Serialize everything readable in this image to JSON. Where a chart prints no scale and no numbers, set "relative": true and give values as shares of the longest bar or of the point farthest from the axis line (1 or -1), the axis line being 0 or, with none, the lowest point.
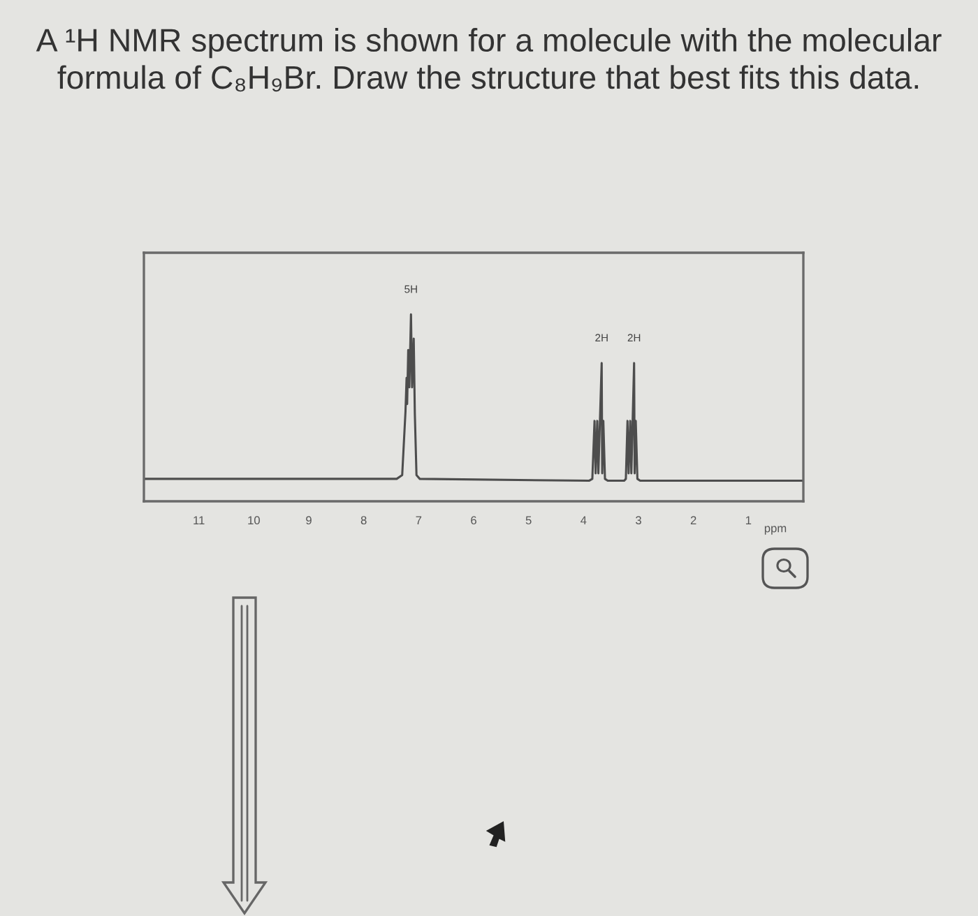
{
  "chart_data": {
    "type": "line",
    "title": "A ¹H NMR spectrum is shown for a molecule with the molecular formula of C₈H₉Br. Draw the structure that best fits this data.",
    "xlabel": "ppm",
    "relative": true,
    "xlim": [
      12,
      0
    ],
    "xticks": [
      11,
      10,
      9,
      8,
      7,
      6,
      5,
      4,
      3,
      2,
      1
    ],
    "line_style": "solid",
    "series": [
      {
        "color": "#4d4d4d",
        "x": [
          12,
          7.4,
          7.3,
          7.24,
          7.22,
          7.21,
          7.19,
          7.17,
          7.14,
          7.12,
          7.09,
          7.07,
          7.04,
          6.98,
          3.9,
          3.84,
          3.8,
          3.78,
          3.75,
          3.73,
          3.67,
          3.66,
          3.64,
          3.61,
          3.56,
          3.26,
          3.23,
          3.2,
          3.18,
          3.15,
          3.13,
          3.08,
          3.07,
          3.05,
          3.02,
          2.97,
          0
        ],
        "values": [
          0.12,
          0.12,
          0.14,
          0.48,
          0.66,
          0.52,
          0.81,
          0.61,
          1.0,
          0.61,
          0.87,
          0.47,
          0.14,
          0.12,
          0.11,
          0.12,
          0.43,
          0.15,
          0.43,
          0.15,
          0.74,
          0.15,
          0.43,
          0.12,
          0.11,
          0.11,
          0.12,
          0.43,
          0.15,
          0.43,
          0.15,
          0.74,
          0.15,
          0.43,
          0.12,
          0.11,
          0.11
        ]
      }
    ],
    "annotations": [
      {
        "text": "5H",
        "x": 7.14,
        "y": 1.0
      },
      {
        "text": "2H",
        "x": 3.67,
        "y": 0.74
      },
      {
        "text": "2H",
        "x": 3.08,
        "y": 0.74
      }
    ]
  }
}
